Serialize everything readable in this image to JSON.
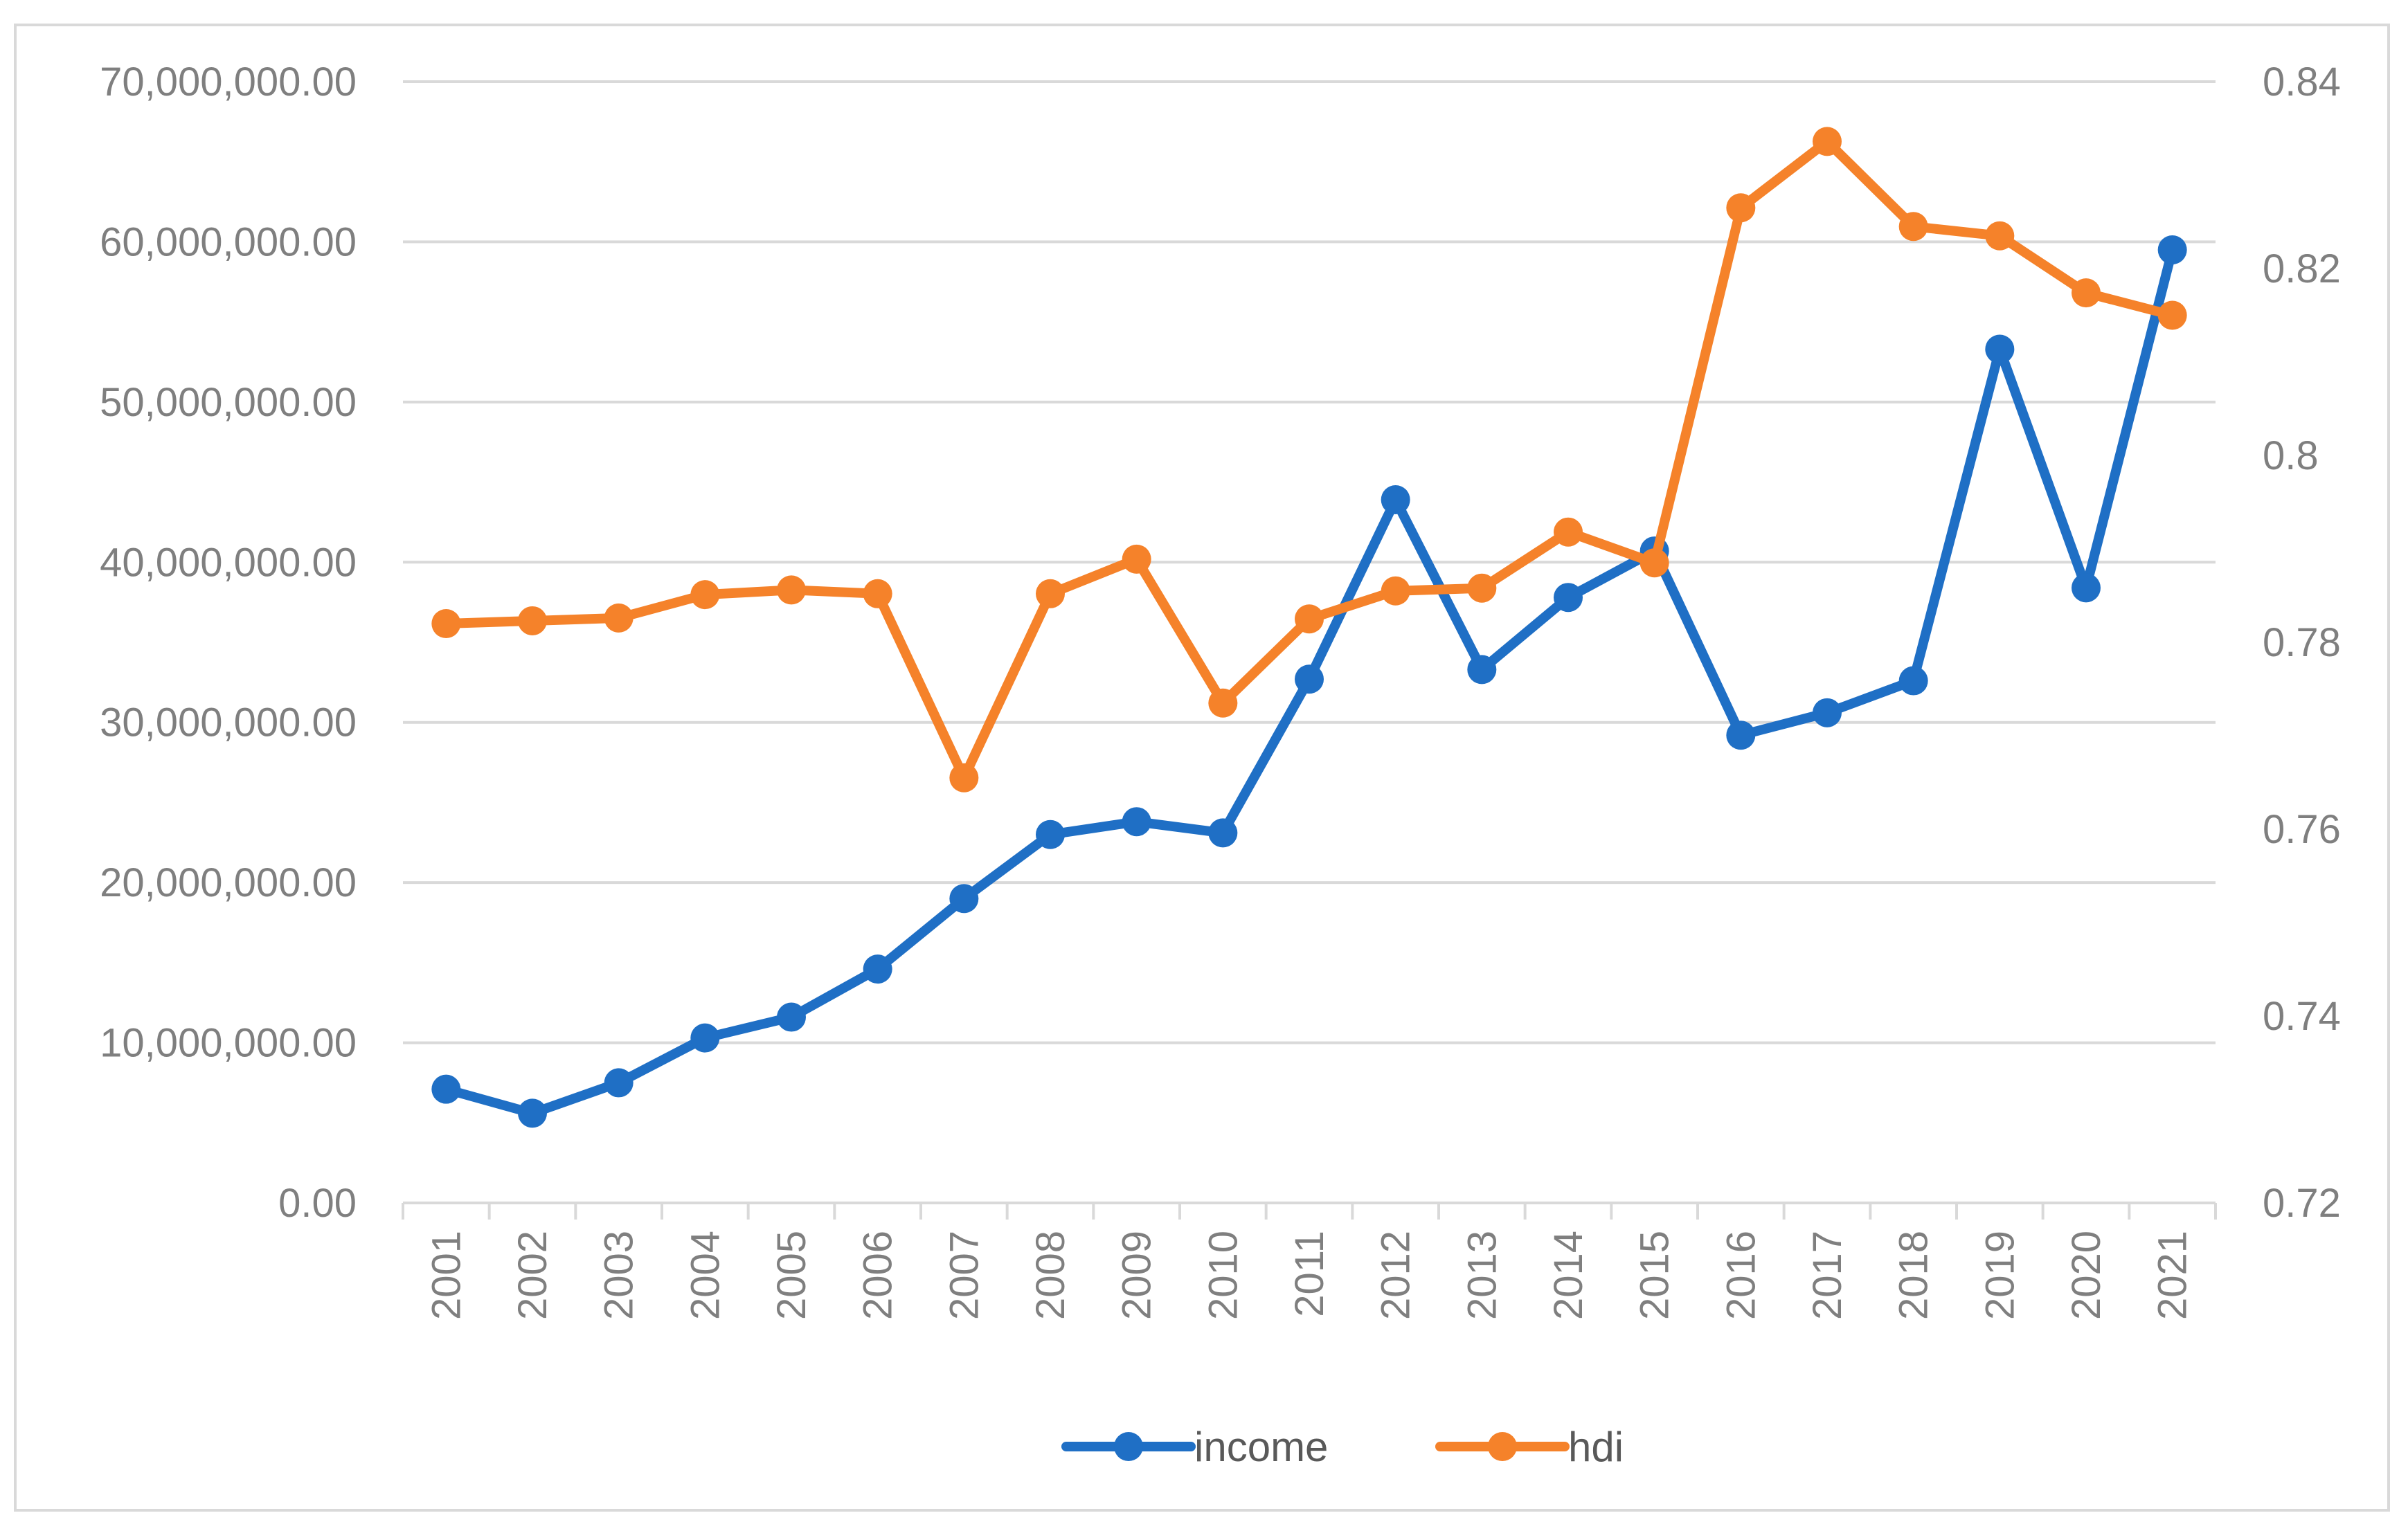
{
  "chart_data": {
    "type": "line",
    "categories": [
      "2001",
      "2002",
      "2003",
      "2004",
      "2005",
      "2006",
      "2007",
      "2008",
      "2009",
      "2010",
      "2011",
      "2012",
      "2013",
      "2014",
      "2015",
      "2016",
      "2017",
      "2018",
      "2019",
      "2020",
      "2021"
    ],
    "series": [
      {
        "name": "income",
        "axis": "left",
        "color": "#1f6fc5",
        "values": [
          7100000,
          5600000,
          7500000,
          10300000,
          11600000,
          14600000,
          19000000,
          23000000,
          23800000,
          23100000,
          32700000,
          43900000,
          33300000,
          37800000,
          40700000,
          29200000,
          30600000,
          32600000,
          53300000,
          38400000,
          59500000
        ]
      },
      {
        "name": "hdi",
        "axis": "right",
        "color": "#f5822a",
        "values": [
          0.782,
          0.7823,
          0.7826,
          0.7851,
          0.7856,
          0.7852,
          0.7655,
          0.7852,
          0.7889,
          0.7735,
          0.7825,
          0.7855,
          0.7858,
          0.7918,
          0.7885,
          0.8265,
          0.8336,
          0.8245,
          0.8235,
          0.8174,
          0.815
        ]
      }
    ],
    "left_axis": {
      "min": 0,
      "max": 70000000,
      "step": 10000000,
      "tick_labels": [
        "0.00",
        "10,000,000.00",
        "20,000,000.00",
        "30,000,000.00",
        "40,000,000.00",
        "50,000,000.00",
        "60,000,000.00",
        "70,000,000.00"
      ]
    },
    "right_axis": {
      "min": 0.72,
      "max": 0.84,
      "step": 0.02,
      "tick_labels": [
        "0.72",
        "0.74",
        "0.76",
        "0.78",
        "0.8",
        "0.82",
        "0.84"
      ]
    },
    "grid": true,
    "legend_position": "bottom",
    "gridline_color": "#d9d9d9",
    "axis_text_color": "#7f7f7f"
  }
}
